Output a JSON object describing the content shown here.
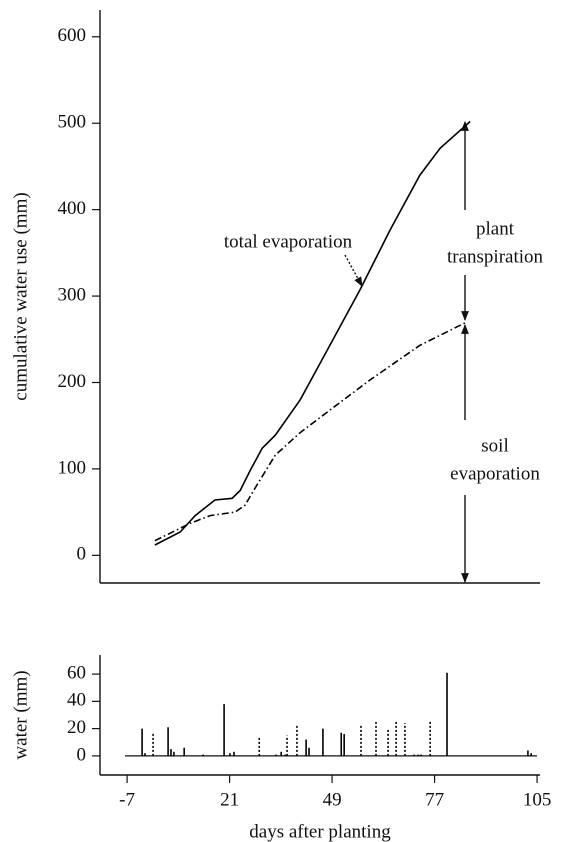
{
  "chart_data": [
    {
      "type": "line",
      "ylabel": "cumulative water use (mm)",
      "xlim": [
        -14.4,
        105.8
      ],
      "ylim": [
        -32,
        631
      ],
      "yticks": [
        0,
        100,
        200,
        300,
        400,
        500,
        600
      ],
      "series": [
        {
          "style": "solid",
          "color": "#000000",
          "x": [
            0.6,
            7.5,
            11.6,
            17,
            21.7,
            23.9,
            26.6,
            29.9,
            33.5,
            40.3,
            48.4,
            56.6,
            64.8,
            73,
            78.5,
            86.7
          ],
          "values": [
            12,
            27,
            46,
            64,
            66,
            75,
            98,
            124,
            139,
            180,
            243,
            307,
            376,
            440,
            471,
            502
          ]
        },
        {
          "style": "dashdot",
          "color": "#000000",
          "x": [
            0.6,
            10.2,
            15.7,
            22.5,
            25.2,
            28,
            33.5,
            40.3,
            48.4,
            59.4,
            73,
            85.3
          ],
          "values": [
            17,
            37,
            46,
            50,
            58,
            78,
            116,
            142,
            168,
            203,
            243,
            269
          ]
        }
      ],
      "annotations": [
        {
          "lines": [
            "total evaporation"
          ]
        },
        {
          "lines": [
            "plant",
            "transpiration"
          ]
        },
        {
          "lines": [
            "soil",
            "evaporation"
          ]
        }
      ]
    },
    {
      "type": "bar",
      "ylabel": "water (mm)",
      "xlabel": "days after planting",
      "xlim": [
        -14.4,
        105.8
      ],
      "ylim": [
        -14,
        74
      ],
      "yticks": [
        0,
        20,
        40,
        60
      ],
      "xticks": [
        -7,
        21,
        49,
        77,
        105
      ],
      "series": [
        {
          "style": "solid",
          "color": "#000000",
          "x": [
            -2.9,
            -2.1,
            4.2,
            5,
            5.8,
            8.6,
            13.8,
            19.5,
            21.1,
            22.2,
            33.7,
            35.1,
            36.2,
            41.9,
            42.7,
            46.5,
            51.5,
            52.3,
            71.4,
            72.5,
            73.3,
            80.4,
            102.5,
            103.4
          ],
          "values": [
            20,
            2,
            21,
            5,
            3,
            6,
            1,
            38,
            2,
            3,
            1,
            3,
            1,
            12,
            6,
            20,
            17,
            16,
            1,
            1,
            1,
            61,
            4,
            2
          ]
        },
        {
          "style": "dotted",
          "color": "#000000",
          "x": [
            0.1,
            29.1,
            36.7,
            39.4,
            56.9,
            61,
            64.3,
            66.5,
            68.9,
            75.8
          ],
          "values": [
            17,
            14,
            15,
            22,
            23,
            25,
            20,
            25,
            24,
            25
          ]
        }
      ]
    }
  ]
}
